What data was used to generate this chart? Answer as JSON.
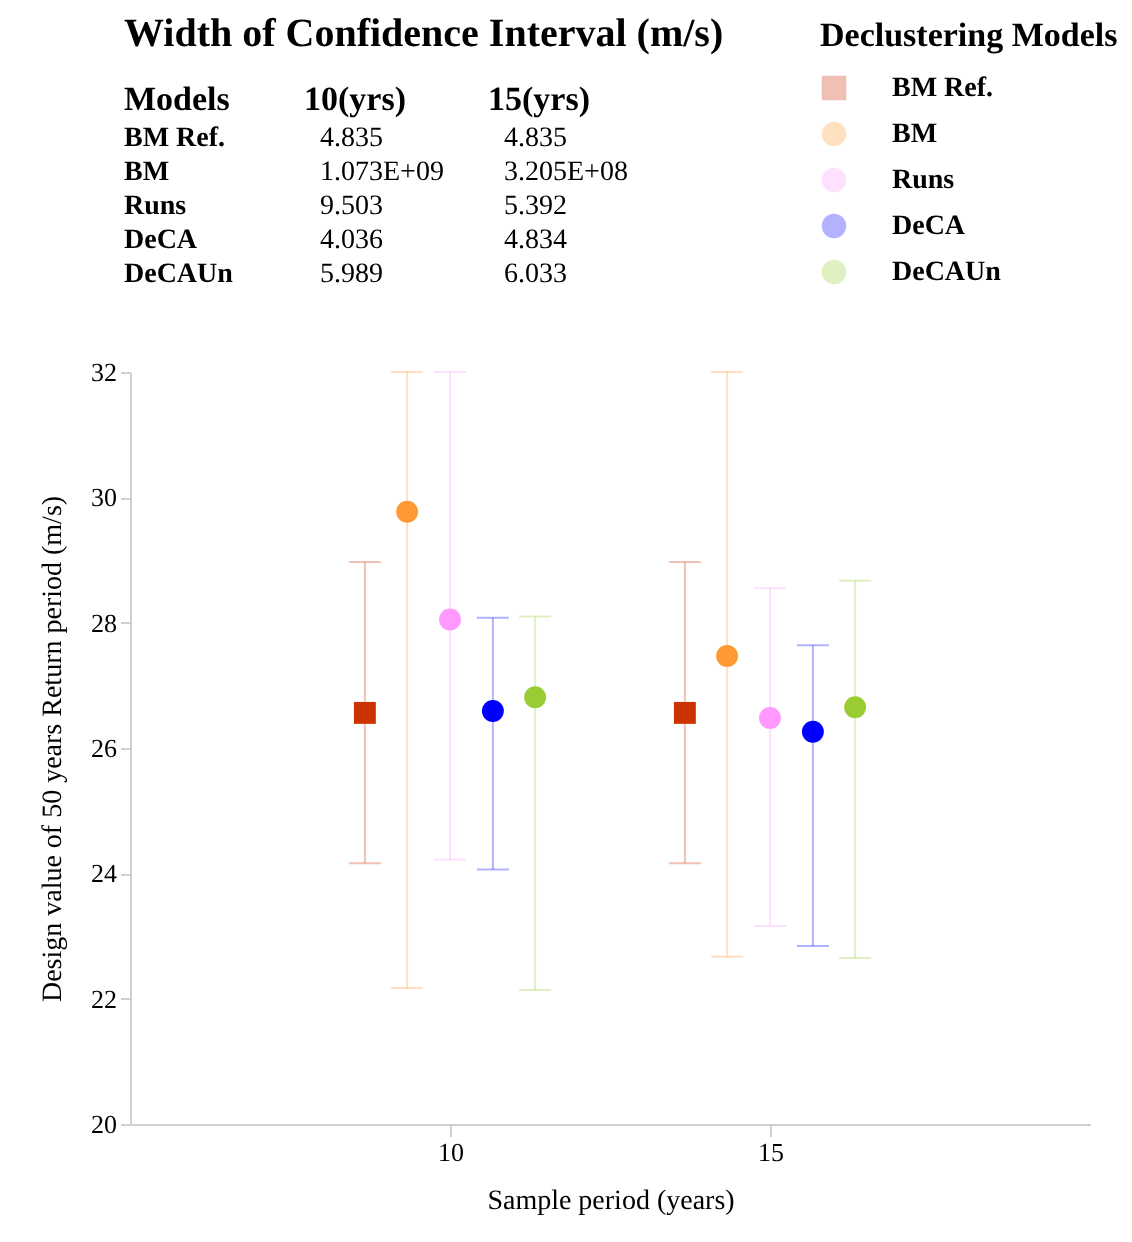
{
  "chart_data": {
    "type": "scatter",
    "annotations": [
      "Width of Confidence Interval (m/s)",
      "Models",
      "10(yrs)",
      "15(yrs)",
      "BM Ref.",
      "4.835",
      "4.835",
      "BM",
      "1.073E+09",
      "3.205E+08",
      "Runs",
      "9.503",
      "5.392",
      "DeCA",
      "4.036",
      "4.834",
      "DeCAUn",
      "5.989",
      "6.033"
    ],
    "xlabel": "Sample period (years)",
    "ylabel": "Design value of 50 years Return period (m/s)",
    "legend_title": "Declustering Models",
    "legend": "top right",
    "xlim": [
      5,
      20
    ],
    "xticks": [
      10,
      15
    ],
    "ylim": [
      20,
      32
    ],
    "yticks": [
      20,
      22,
      24,
      26,
      28,
      30,
      32
    ],
    "grid": false,
    "series": [
      {
        "name": "BM Ref.",
        "color": "#cc3300",
        "marker": "square",
        "x": [
          8.67,
          13.67
        ],
        "values": [
          26.56,
          26.56
        ],
        "errors": [
          [
            24.16,
            28.97
          ],
          [
            24.16,
            28.97
          ]
        ]
      },
      {
        "name": "BM",
        "color": "#ff9933",
        "marker": "circle",
        "x": [
          9.33,
          14.33
        ],
        "values": [
          29.77,
          27.47
        ],
        "errors": [
          [
            22.17,
            32
          ],
          [
            22.67,
            32
          ]
        ]
      },
      {
        "name": "Runs",
        "color": "#ff99ff",
        "marker": "circle",
        "x": [
          10,
          15
        ],
        "values": [
          28.05,
          26.48
        ],
        "errors": [
          [
            24.22,
            32
          ],
          [
            23.16,
            28.55
          ]
        ]
      },
      {
        "name": "DeCA",
        "color": "#0000ff",
        "marker": "circle",
        "x": [
          10.67,
          15.67
        ],
        "values": [
          26.59,
          26.26
        ],
        "errors": [
          [
            24.06,
            28.08
          ],
          [
            22.84,
            27.64
          ]
        ]
      },
      {
        "name": "DeCAUn",
        "color": "#99cc33",
        "marker": "circle",
        "x": [
          11.33,
          16.33
        ],
        "values": [
          26.81,
          26.65
        ],
        "errors": [
          [
            22.14,
            28.1
          ],
          [
            22.65,
            28.67
          ]
        ]
      }
    ]
  }
}
